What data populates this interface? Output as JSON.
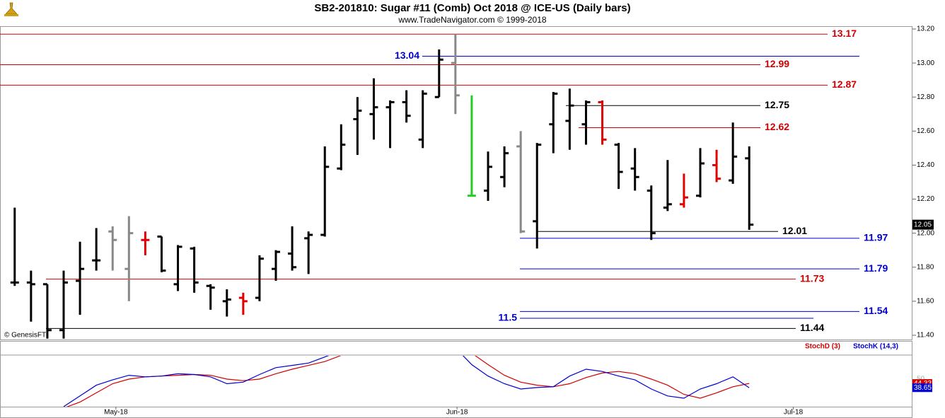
{
  "chart_data": [
    {
      "type": "ohlc",
      "title": "SB2-201810:  Sugar #11 (Comb) Oct 2018 @ ICE-US  (Daily bars)",
      "subtitle": "www.TradeNavigator.com © 1999-2018",
      "watermark": "© GenesisFT",
      "ylim": [
        11.4,
        13.2
      ],
      "yticks": [
        {
          "value": 13.2,
          "label": "13.20"
        },
        {
          "value": 13.0,
          "label": "13.00"
        },
        {
          "value": 12.8,
          "label": "12.80"
        },
        {
          "value": 12.6,
          "label": "12.60"
        },
        {
          "value": 12.4,
          "label": "12.40"
        },
        {
          "value": 12.2,
          "label": "12.20"
        },
        {
          "value": 12.0,
          "label": "12.00"
        },
        {
          "value": 11.8,
          "label": "11.80"
        },
        {
          "value": 11.6,
          "label": "11.60"
        },
        {
          "value": 11.4,
          "label": "11.40"
        }
      ],
      "xlim": [
        -0.9,
        55
      ],
      "xticks": [
        {
          "value": 6.2,
          "label": "May-18"
        },
        {
          "value": 27.1,
          "label": "Jun-18"
        },
        {
          "value": 47.7,
          "label": "Jul-18"
        }
      ],
      "open": [
        11.71,
        11.71,
        11.7,
        11.43,
        11.72,
        11.84,
        12.01,
        11.79,
        11.96,
        11.98,
        11.7,
        11.91,
        11.69,
        11.6,
        11.62,
        11.62,
        11.79,
        11.88,
        11.97,
        11.99,
        12.38,
        12.67,
        12.7,
        12.74,
        12.77,
        12.55,
        12.8,
        13.0,
        12.22,
        12.25,
        12.33,
        12.51,
        12.07,
        12.64,
        12.66,
        12.64,
        12.77,
        12.52,
        12.38,
        12.25,
        12.15,
        12.17,
        12.22,
        12.4,
        12.31,
        12.44
      ],
      "high": [
        12.15,
        11.78,
        11.7,
        11.78,
        11.95,
        12.03,
        12.04,
        12.1,
        12.01,
        11.98,
        11.93,
        11.92,
        11.7,
        11.67,
        11.65,
        11.87,
        11.9,
        12.04,
        12.01,
        12.51,
        12.64,
        12.8,
        12.91,
        12.78,
        12.84,
        12.84,
        13.08,
        13.17,
        12.81,
        12.48,
        12.51,
        12.6,
        12.53,
        12.83,
        12.85,
        12.78,
        12.78,
        12.53,
        12.5,
        12.28,
        12.43,
        12.35,
        12.5,
        12.49,
        12.65,
        12.51
      ],
      "low": [
        11.69,
        11.48,
        11.38,
        11.38,
        11.52,
        11.78,
        11.78,
        11.6,
        11.87,
        11.77,
        11.66,
        11.65,
        11.55,
        11.51,
        11.52,
        11.6,
        11.72,
        11.78,
        11.76,
        11.98,
        12.37,
        12.46,
        12.55,
        12.5,
        12.65,
        12.5,
        12.8,
        12.7,
        12.22,
        12.19,
        12.27,
        12.0,
        11.91,
        12.47,
        12.49,
        12.52,
        12.52,
        12.26,
        12.25,
        11.96,
        12.13,
        12.15,
        12.21,
        12.3,
        12.29,
        12.02
      ],
      "close": [
        11.71,
        11.7,
        11.43,
        11.71,
        11.79,
        11.84,
        11.96,
        12.0,
        11.96,
        11.78,
        11.92,
        11.71,
        11.68,
        11.61,
        11.6,
        11.85,
        11.89,
        11.8,
        11.99,
        12.39,
        12.52,
        12.72,
        12.74,
        12.77,
        12.69,
        12.82,
        13.02,
        12.81,
        12.22,
        12.39,
        12.47,
        12.01,
        12.52,
        12.82,
        12.75,
        12.77,
        12.55,
        12.36,
        12.33,
        12.0,
        12.17,
        12.21,
        12.41,
        12.32,
        12.45,
        12.05
      ],
      "bar_colors": [
        "#000",
        "#000",
        "#000",
        "#000",
        "#000",
        "#000",
        "#888",
        "#888",
        "#e00000",
        "#000",
        "#000",
        "#000",
        "#000",
        "#000",
        "#e00000",
        "#000",
        "#000",
        "#000",
        "#000",
        "#000",
        "#000",
        "#000",
        "#000",
        "#000",
        "#000",
        "#000",
        "#000",
        "#888",
        "#22cc22",
        "#000",
        "#000",
        "#888",
        "#000",
        "#000",
        "#000",
        "#000",
        "#e00000",
        "#000",
        "#000",
        "#000",
        "#000",
        "#e00000",
        "#000",
        "#e00000",
        "#000",
        "#000"
      ],
      "last_price": 12.05,
      "levels": [
        {
          "value": 13.17,
          "color": "#d00000"
        },
        {
          "value": 13.04,
          "color": "#0000d0"
        },
        {
          "value": 12.99,
          "color": "#d00000"
        },
        {
          "value": 12.87,
          "color": "#d00000"
        },
        {
          "value": 12.75,
          "color": "#000000"
        },
        {
          "value": 12.62,
          "color": "#d00000"
        },
        {
          "value": 12.01,
          "color": "#000000"
        },
        {
          "value": 11.97,
          "color": "#0000d0"
        },
        {
          "value": 11.79,
          "color": "#0000d0"
        },
        {
          "value": 11.73,
          "color": "#d00000"
        },
        {
          "value": 11.54,
          "color": "#0000d0"
        },
        {
          "value": 11.5,
          "color": "#0000d0"
        },
        {
          "value": 11.44,
          "color": "#000000"
        }
      ]
    },
    {
      "type": "line",
      "ylim": [
        0,
        100
      ],
      "yticks": [
        50
      ],
      "series": [
        {
          "name": "StochD (3)",
          "color": "#d00000",
          "values": [
            null,
            null,
            null,
            12,
            20,
            32,
            44,
            50,
            53,
            54,
            55,
            56,
            55,
            50,
            48,
            50,
            57,
            63,
            68,
            73,
            81,
            87,
            90,
            90,
            90,
            90,
            92,
            91,
            84,
            69,
            55,
            46,
            42,
            40,
            44,
            52,
            58,
            60,
            57,
            50,
            42,
            30,
            25,
            32,
            40,
            44.33
          ]
        },
        {
          "name": "StochK (14,3)",
          "color": "#0000d0",
          "values": [
            null,
            null,
            null,
            14,
            28,
            42,
            49,
            55,
            53,
            54,
            57,
            56,
            53,
            44,
            46,
            56,
            65,
            68,
            71,
            79,
            87,
            92,
            90,
            91,
            89,
            91,
            93,
            91,
            69,
            54,
            44,
            37,
            39,
            40,
            54,
            63,
            60,
            54,
            49,
            37,
            28,
            25,
            37,
            44,
            53,
            38.65
          ]
        }
      ]
    }
  ]
}
